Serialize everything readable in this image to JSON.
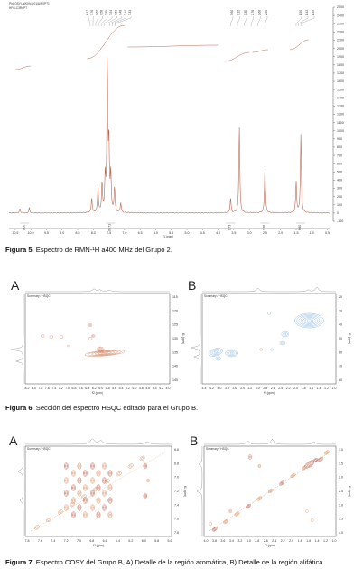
{
  "figure5": {
    "legend_lines": [
      "PhCOSY(JWG)N-F01/A/R0PT1",
      "HFG-C3RnPT"
    ],
    "top_ppm_labels_left": [
      "6.17",
      "7.76",
      "7.62",
      "7.58",
      "7.55",
      "7.54",
      "7.52",
      "7.48",
      "7.44",
      "7.32"
    ],
    "top_ppm_labels_right_a": [
      "3.60",
      "3.32",
      "3.30",
      "2.76",
      "2.68",
      "2.50"
    ],
    "top_ppm_labels_right_b": [
      "1.50",
      "1.42",
      "1.35"
    ],
    "integrals": [
      "1.00",
      "10.71",
      "0.73",
      "0.26",
      "8.60"
    ],
    "caption_label": "Figura 5.",
    "caption_text": " Espectro de RMN-¹H a400 MHz del Grupo 2.",
    "x_axis_label": "f1 (ppm)"
  },
  "figure6": {
    "panel_a": "A",
    "panel_b": "B",
    "caption_label": "Figura 6.",
    "caption_text": " Sección del espectro HSQC editado para el Grupo B."
  },
  "figure7": {
    "panel_a": "A",
    "panel_b": "B",
    "caption_label": "Figura 7.",
    "caption_text": " Espectro COSY del Grupo B, A) Detalle de la región aromática, B) Detalle de la región alifática."
  },
  "chart_data": [
    {
      "type": "line",
      "title": "",
      "xlabel": "f1 (ppm)",
      "ylabel": "",
      "x_ticks": [
        10.5,
        10.0,
        9.5,
        9.0,
        8.5,
        8.0,
        7.5,
        7.0,
        6.5,
        6.0,
        5.5,
        5.0,
        4.5,
        4.0,
        3.5,
        3.0,
        2.5,
        2.0,
        1.5,
        1.0,
        0.5
      ],
      "xlim": [
        10.7,
        0.4
      ],
      "y_ticks": [
        -100,
        0,
        100,
        200,
        300,
        400,
        500,
        600,
        700,
        800,
        900,
        1000,
        1100,
        1200,
        1300,
        1400,
        1500,
        1600,
        1700,
        1800,
        1900,
        2000,
        2100,
        2200,
        2300,
        2400,
        2500
      ],
      "ylim": [
        -100,
        2500
      ],
      "series": [
        {
          "peaks": [
            {
              "x": 10.35,
              "y": 50
            },
            {
              "x": 10.05,
              "y": 60
            },
            {
              "x": 8.05,
              "y": 180
            },
            {
              "x": 7.85,
              "y": 300
            },
            {
              "x": 7.72,
              "y": 350
            },
            {
              "x": 7.62,
              "y": 420
            },
            {
              "x": 7.55,
              "y": 1800
            },
            {
              "x": 7.5,
              "y": 800
            },
            {
              "x": 7.44,
              "y": 450
            },
            {
              "x": 7.32,
              "y": 300
            },
            {
              "x": 7.12,
              "y": 120
            },
            {
              "x": 3.32,
              "y": 1050
            },
            {
              "x": 3.6,
              "y": 180
            },
            {
              "x": 2.5,
              "y": 560
            },
            {
              "x": 1.5,
              "y": 380
            },
            {
              "x": 1.35,
              "y": 950
            }
          ]
        }
      ]
    },
    {
      "type": "heatmap",
      "name": "HSQC-A",
      "x_ticks": [
        "8.2",
        "8.0",
        "7.8",
        "7.6",
        "7.4",
        "7.2",
        "7.0",
        "6.8",
        "6.6",
        "6.4",
        "6.2",
        "6.0",
        "5.8",
        "5.6",
        "5.4",
        "5.2",
        "5.0",
        "4.8",
        "4.6",
        "4.4",
        "4.2",
        "4.0"
      ],
      "xlabel": "f2 (ppm)",
      "y_ticks": [
        "115",
        "120",
        "125",
        "130",
        "135",
        "140",
        "145"
      ],
      "ylabel": "f1 (ppm)"
    },
    {
      "type": "heatmap",
      "name": "HSQC-B",
      "x_ticks": [
        "4.4",
        "4.2",
        "4.0",
        "3.8",
        "3.6",
        "3.4",
        "3.2",
        "3.0",
        "2.8",
        "2.6",
        "2.4",
        "2.2",
        "2.0",
        "1.8",
        "1.6",
        "1.4",
        "1.2",
        "1.0"
      ],
      "xlabel": "f2 (ppm)",
      "y_ticks": [
        "20",
        "30",
        "40",
        "50",
        "60",
        "70",
        "80"
      ],
      "ylabel": "f1 (ppm)"
    },
    {
      "type": "heatmap",
      "name": "COSY-A",
      "x_ticks": [
        "7.8",
        "7.6",
        "7.4",
        "7.2",
        "7.0",
        "6.8",
        "6.6",
        "6.4",
        "6.2",
        "6.0",
        "5.8",
        "5.6"
      ],
      "xlabel": "f2 (ppm)",
      "y_ticks": [
        "6.6",
        "6.8",
        "7.0",
        "7.2",
        "7.4",
        "7.6",
        "7.8"
      ],
      "ylabel": "f1 (ppm)"
    },
    {
      "type": "heatmap",
      "name": "COSY-B",
      "x_ticks": [
        "4.0",
        "3.8",
        "3.6",
        "3.4",
        "3.2",
        "3.0",
        "2.8",
        "2.6",
        "2.4",
        "2.2",
        "2.0",
        "1.8",
        "1.6",
        "1.4",
        "1.2",
        "1.0"
      ],
      "xlabel": "f2 (ppm)",
      "y_ticks": [
        "1.0",
        "1.5",
        "2.0",
        "2.5",
        "3.0",
        "3.5",
        "4.0"
      ],
      "ylabel": "f1 (ppm)"
    }
  ]
}
